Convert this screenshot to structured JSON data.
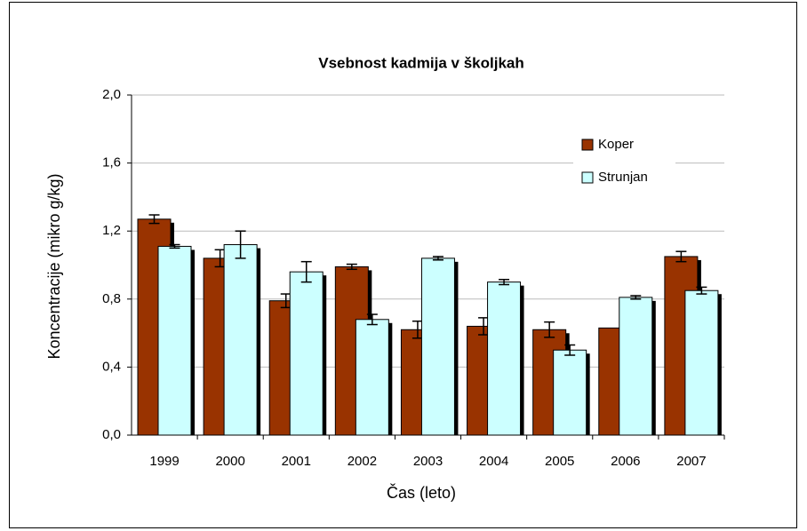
{
  "chart_data": {
    "type": "bar",
    "title": "Vsebnost kadmija v školjkah",
    "x_label": "Čas (leto)",
    "y_label": "Koncentracije (mikro g/kg)",
    "categories": [
      "1999",
      "2000",
      "2001",
      "2002",
      "2003",
      "2004",
      "2005",
      "2006",
      "2007"
    ],
    "series": [
      {
        "name": "Koper",
        "color": "#993300",
        "values": [
          1.27,
          1.04,
          0.79,
          0.99,
          0.62,
          0.64,
          0.62,
          0.63,
          1.05
        ],
        "errors": [
          0.025,
          0.05,
          0.04,
          0.015,
          0.05,
          0.05,
          0.045,
          null,
          0.03
        ]
      },
      {
        "name": "Strunjan",
        "color": "#ccffff",
        "values": [
          1.11,
          1.12,
          0.96,
          0.68,
          1.04,
          0.9,
          0.5,
          0.81,
          0.85
        ],
        "errors": [
          0.01,
          0.08,
          0.06,
          0.03,
          0.01,
          0.015,
          0.03,
          0.01,
          0.02
        ]
      }
    ],
    "ylim": [
      0,
      2
    ],
    "yticks": [
      {
        "value": 0,
        "label": "0,0"
      },
      {
        "value": 0.4,
        "label": "0,4"
      },
      {
        "value": 0.8,
        "label": "0,8"
      },
      {
        "value": 1.2,
        "label": "1,2"
      },
      {
        "value": 1.6,
        "label": "1,6"
      },
      {
        "value": 2,
        "label": "2,0"
      }
    ],
    "grid": true,
    "legend": "top-right"
  }
}
